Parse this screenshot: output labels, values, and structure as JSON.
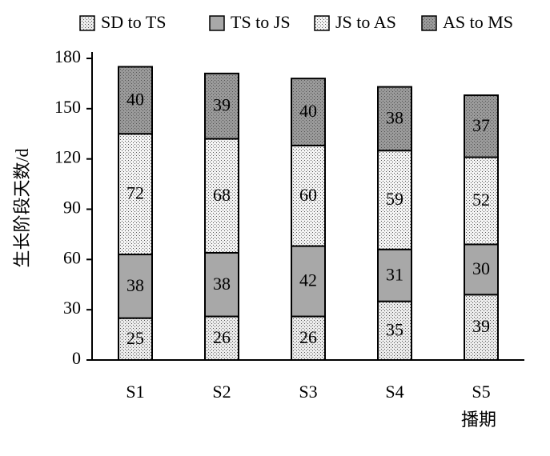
{
  "chart_data": {
    "type": "bar",
    "stacked": true,
    "categories": [
      "S1",
      "S2",
      "S3",
      "S4",
      "S5"
    ],
    "series": [
      {
        "name": "SD to TS",
        "color": "#ececec",
        "pattern": "dots",
        "values": [
          25,
          26,
          26,
          35,
          39
        ]
      },
      {
        "name": "TS to JS",
        "color": "#a8a8a8",
        "pattern": "none",
        "values": [
          38,
          38,
          42,
          31,
          30
        ]
      },
      {
        "name": "JS to AS",
        "color": "#f4f4f4",
        "pattern": "dots",
        "values": [
          72,
          68,
          60,
          59,
          52
        ]
      },
      {
        "name": "AS to MS",
        "color": "#9a9a9a",
        "pattern": "dots",
        "values": [
          40,
          39,
          40,
          38,
          37
        ]
      }
    ],
    "xlabel": "播期",
    "ylabel": "生长阶段天数/d",
    "ylim": [
      0,
      180
    ],
    "yticks": [
      0,
      30,
      60,
      90,
      120,
      150,
      180
    ],
    "legend": "top"
  }
}
